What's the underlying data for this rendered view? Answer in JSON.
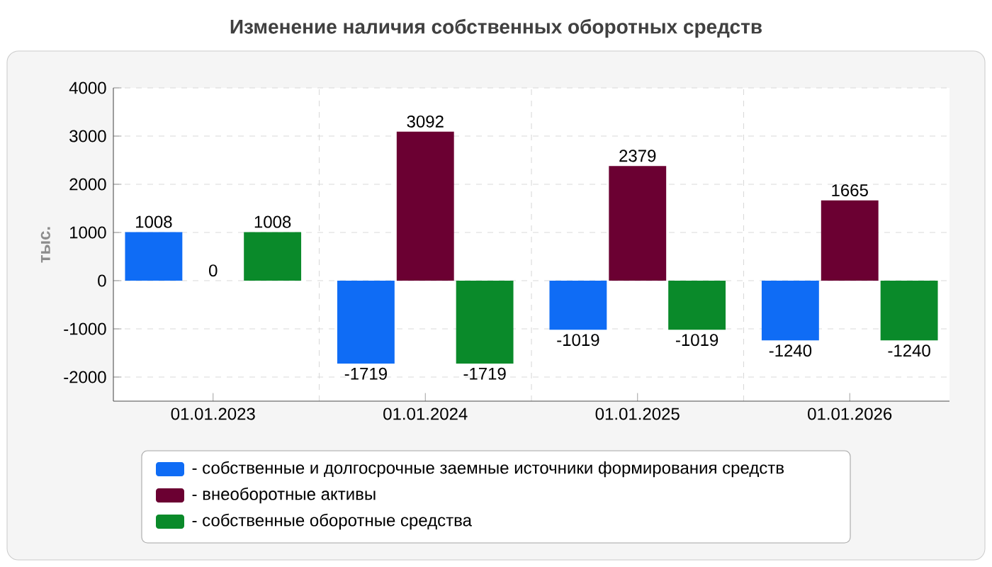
{
  "chart_data": {
    "type": "bar",
    "title": "Изменение наличия собственных оборотных средств",
    "ylabel": "тыс.",
    "categories": [
      "01.01.2023",
      "01.01.2024",
      "01.01.2025",
      "01.01.2026"
    ],
    "series": [
      {
        "name": "- собственные и долгосрочные заемные источники формирования средств",
        "color": "#0f6cf5",
        "values": [
          1008,
          -1719,
          -1019,
          -1240
        ]
      },
      {
        "name": "- внеоборотные активы",
        "color": "#6b0032",
        "values": [
          0,
          3092,
          2379,
          1665
        ]
      },
      {
        "name": "- собственные оборотные средства",
        "color": "#0a8a2a",
        "values": [
          1008,
          -1719,
          -1019,
          -1240
        ]
      }
    ],
    "ylim": [
      -2500,
      4000
    ],
    "yticks": [
      -2000,
      -1000,
      0,
      1000,
      2000,
      3000,
      4000
    ],
    "grid": true,
    "legend": "bottom",
    "data_labels": true
  }
}
